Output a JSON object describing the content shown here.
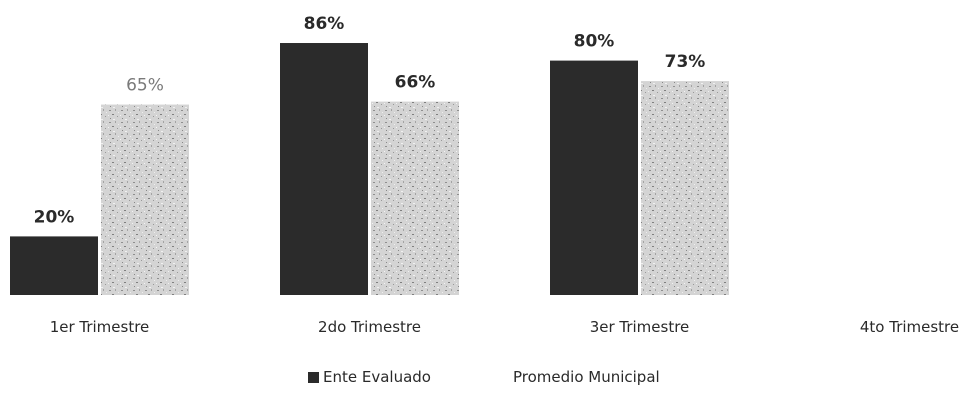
{
  "chart_data": {
    "type": "bar",
    "title": "",
    "xlabel": "",
    "ylabel": "",
    "ylim": [
      0,
      100
    ],
    "grid": false,
    "legend_position": "bottom",
    "categories": [
      "1er Trimestre",
      "2do Trimestre",
      "3er Trimestre",
      "4to Trimestre"
    ],
    "series": [
      {
        "name": "Ente Evaluado",
        "color": "#2b2b2b",
        "values": [
          20,
          86,
          80,
          null
        ],
        "labels": [
          "20%",
          "86%",
          "80%",
          ""
        ]
      },
      {
        "name": "Promedio Municipal",
        "color": "#b5b5b5",
        "values": [
          65,
          66,
          73,
          null
        ],
        "labels": [
          "65%",
          "66%",
          "73%",
          ""
        ]
      }
    ]
  }
}
